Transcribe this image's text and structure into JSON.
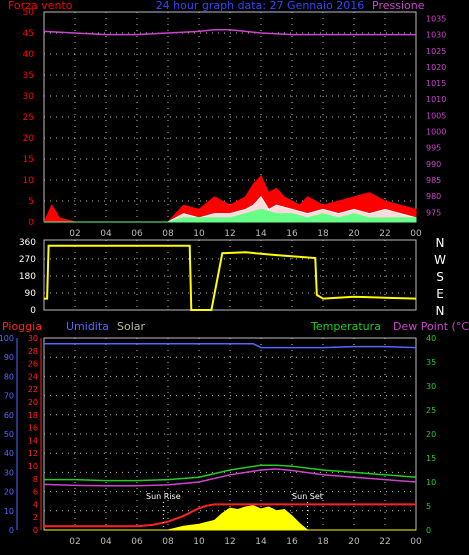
{
  "title": "24 hour graph data: 27 Gennaio 2016",
  "colors": {
    "wind": "#ff0000",
    "gust": "#ffffff",
    "avg": "#66ff88",
    "pressure": "#cc44cc",
    "direction": "#ffff00",
    "rain": "#ff2222",
    "humidity": "#5566ff",
    "solar": "#ffff00",
    "temperature": "#22cc22",
    "dewpoint": "#cc44cc",
    "tick_wind": "#ff0000",
    "tick_pressure": "#cc44cc",
    "tick_rain": "#ff2222",
    "tick_hum": "#5566ff",
    "tick_temp": "#22cc22",
    "tick_x": "#bbbbbb",
    "tick_dir": "#ffffff",
    "grid": "#bbbbbb"
  },
  "chart_data": [
    {
      "type": "area",
      "panel": "top",
      "left_label": "Forza vento",
      "right_label": "Pressione",
      "x_ticks": [
        "02",
        "04",
        "06",
        "08",
        "10",
        "12",
        "14",
        "16",
        "18",
        "20",
        "22",
        "00"
      ],
      "left_ticks": [
        "0",
        "5",
        "10",
        "15",
        "20",
        "25",
        "30",
        "35",
        "40",
        "45",
        "50"
      ],
      "right_ticks": [
        "975",
        "980",
        "985",
        "990",
        "995",
        "1000",
        "1005",
        "1010",
        "1015",
        "1020",
        "1025",
        "1030",
        "1035"
      ],
      "ylim_wind": [
        0,
        50
      ],
      "ylim_pressure": [
        972,
        1037
      ],
      "xlim_hours": [
        0,
        24
      ],
      "series": [
        {
          "name": "pressure",
          "x": [
            0,
            2,
            4,
            6,
            8,
            10,
            11,
            12,
            13,
            14,
            16,
            18,
            20,
            22,
            24
          ],
          "y": [
            1031,
            1030.5,
            1030,
            1030,
            1030.5,
            1031,
            1031.5,
            1031.5,
            1031,
            1030.5,
            1030,
            1030,
            1030,
            1030,
            1030
          ]
        },
        {
          "name": "wind",
          "x": [
            0,
            0.5,
            1,
            2,
            4,
            6,
            8,
            9,
            10,
            11,
            12,
            13,
            13.5,
            14,
            14.5,
            15,
            15.5,
            16,
            16.5,
            17,
            18,
            19,
            20,
            21,
            22,
            23,
            24
          ],
          "y": [
            0,
            4,
            1,
            0,
            0,
            0,
            0,
            4,
            3,
            6,
            4,
            6,
            9,
            11,
            7,
            8,
            6,
            5,
            4,
            6,
            4,
            5,
            6,
            7,
            5,
            4,
            3
          ]
        },
        {
          "name": "gust",
          "x": [
            0,
            8,
            9,
            10,
            11,
            12,
            13,
            13.5,
            14,
            14.5,
            15,
            16,
            17,
            18,
            19,
            20,
            21,
            22,
            23,
            24
          ],
          "y": [
            0,
            0,
            2,
            1,
            2,
            2,
            3,
            4,
            6,
            3,
            4,
            3,
            2,
            3,
            2,
            3,
            2,
            3,
            2,
            1
          ]
        },
        {
          "name": "avg",
          "x": [
            0,
            8,
            9,
            10,
            11,
            12,
            13,
            14,
            15,
            16,
            17,
            18,
            19,
            20,
            21,
            22,
            23,
            24
          ],
          "y": [
            0,
            0,
            1,
            1,
            1,
            1,
            2,
            3,
            2,
            2,
            1,
            2,
            1,
            2,
            1,
            1,
            1,
            1
          ]
        }
      ]
    },
    {
      "type": "line",
      "panel": "direction",
      "y_ticks": [
        "0",
        "90",
        "180",
        "270",
        "360"
      ],
      "compass": [
        "N",
        "W",
        "S",
        "E",
        "N"
      ],
      "ylim": [
        0,
        370
      ],
      "series": [
        {
          "name": "direction",
          "x": [
            0,
            0.2,
            0.3,
            2,
            6,
            9.4,
            9.5,
            10.7,
            10.8,
            11.5,
            13,
            15,
            17.5,
            17.6,
            18,
            20,
            22,
            24
          ],
          "y": [
            60,
            60,
            340,
            340,
            340,
            340,
            0,
            0,
            0,
            300,
            305,
            290,
            275,
            80,
            60,
            70,
            65,
            60
          ]
        }
      ]
    },
    {
      "type": "area",
      "panel": "bottom",
      "labels": {
        "rain": "Pioggia",
        "humidity": "Umidita",
        "solar": "Solar",
        "temperature": "Temperatura",
        "dewpoint": "Dew Point (°C)"
      },
      "annotations": [
        "Sun Rise",
        "Sun Set"
      ],
      "sun_rise_hour": 7.7,
      "sun_set_hour": 17.0,
      "x_ticks": [
        "02",
        "04",
        "06",
        "08",
        "10",
        "12",
        "14",
        "16",
        "18",
        "20",
        "22",
        "00"
      ],
      "hum_ticks": [
        "0",
        "10",
        "20",
        "30",
        "40",
        "50",
        "60",
        "70",
        "80",
        "90",
        "100"
      ],
      "rain_ticks": [
        "0",
        "2",
        "4",
        "6",
        "8",
        "10",
        "12",
        "14",
        "16",
        "18",
        "20",
        "22",
        "24",
        "26",
        "28",
        "30"
      ],
      "temp_ticks": [
        "0",
        "5",
        "10",
        "15",
        "20",
        "25",
        "30",
        "35",
        "40"
      ],
      "ylim_hum": [
        0,
        100
      ],
      "ylim_temp": [
        0,
        40
      ],
      "series": [
        {
          "name": "humidity",
          "x": [
            0,
            5,
            10,
            12,
            13.5,
            14,
            16,
            18,
            20,
            22,
            24
          ],
          "y": [
            97,
            97,
            97,
            97,
            97,
            95,
            95,
            95,
            95.5,
            95.5,
            95
          ]
        },
        {
          "name": "temperature",
          "x": [
            0,
            2,
            4,
            6,
            8,
            10,
            12,
            14,
            15,
            16,
            18,
            20,
            22,
            24
          ],
          "y": [
            10.5,
            10.5,
            10.3,
            10.3,
            10.5,
            11,
            12.5,
            13.5,
            13.5,
            13.3,
            12.5,
            12,
            11.5,
            11
          ]
        },
        {
          "name": "dewpoint",
          "x": [
            0,
            2,
            4,
            6,
            8,
            10,
            12,
            14,
            15,
            16,
            18,
            20,
            22,
            24
          ],
          "y": [
            9.5,
            9.3,
            9.2,
            9.2,
            9.4,
            10,
            11.5,
            12.5,
            12.7,
            12.4,
            11.5,
            11,
            10.5,
            10
          ]
        },
        {
          "name": "rain",
          "x": [
            0,
            6,
            7,
            8,
            9,
            10,
            10.5,
            11,
            12,
            13,
            14,
            24
          ],
          "y": [
            0.6,
            0.6,
            0.8,
            1.3,
            2.2,
            3.4,
            3.8,
            4,
            4,
            4,
            4,
            4
          ]
        },
        {
          "name": "solar",
          "x": [
            0,
            8,
            8.5,
            9,
            10,
            11,
            11.5,
            12,
            12.5,
            13,
            13.5,
            14,
            14.5,
            15,
            15.5,
            16,
            16.5,
            17,
            24
          ],
          "y": [
            0,
            0,
            0.3,
            0.6,
            0.9,
            1.5,
            2.6,
            3.4,
            3.2,
            3.6,
            3.8,
            3.3,
            3.6,
            3.0,
            3.2,
            2.2,
            1.0,
            0,
            0
          ]
        }
      ]
    }
  ]
}
